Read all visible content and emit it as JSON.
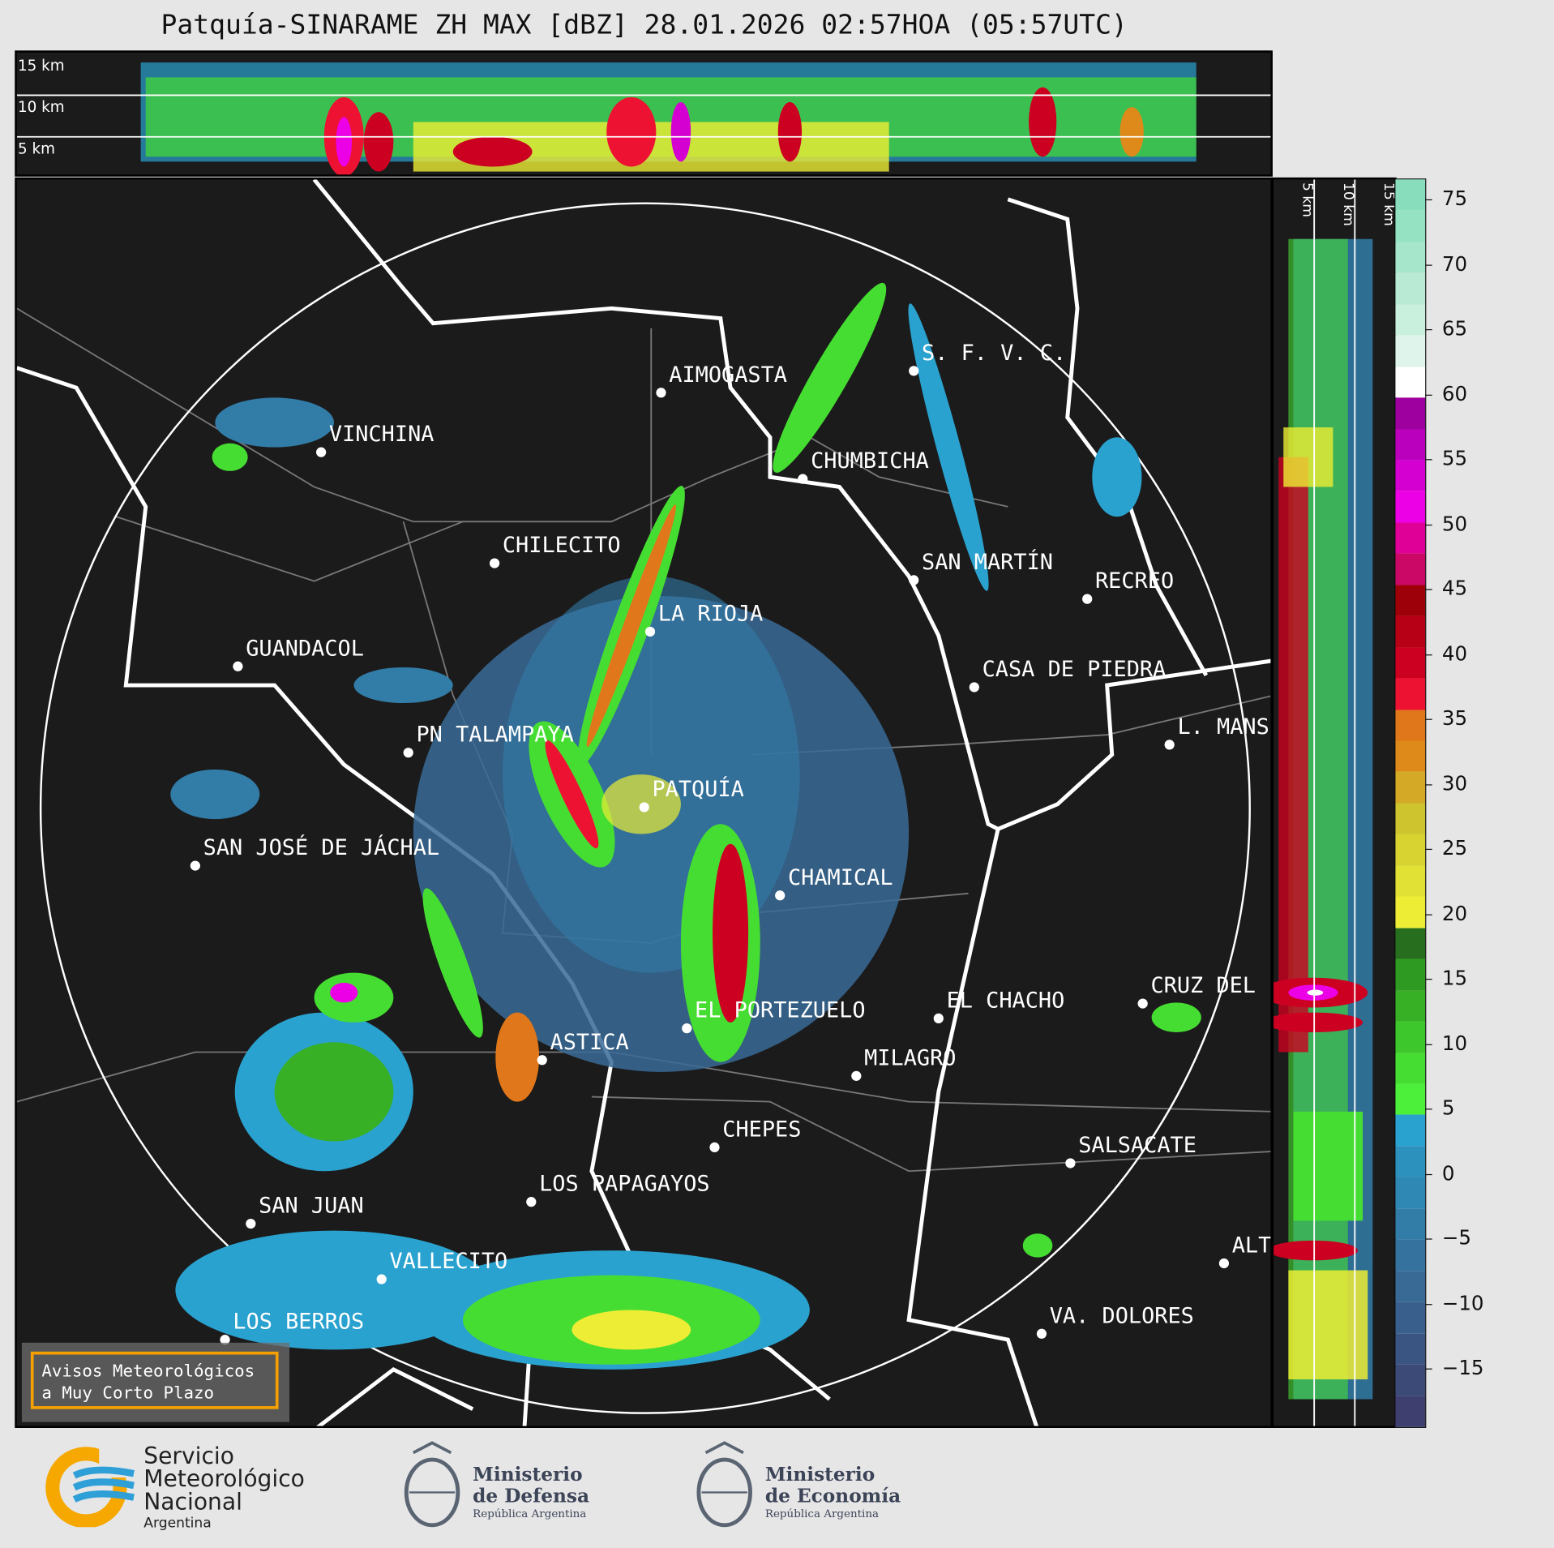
{
  "title": "Patquía-SINARAME ZH MAX [dBZ] 28.01.2026 02:57HOA (05:57UTC)",
  "top_panel": {
    "height_labels": [
      "15 km",
      "10 km",
      "5 km"
    ]
  },
  "side_panel": {
    "height_labels": [
      "5 km",
      "10 km",
      "15 km"
    ]
  },
  "colorbar": {
    "ticks": [
      "75",
      "70",
      "65",
      "60",
      "55",
      "50",
      "45",
      "40",
      "35",
      "30",
      "25",
      "20",
      "15",
      "10",
      "5",
      "0",
      "−5",
      "−10",
      "−15"
    ],
    "colors_bottom_to_top": [
      "#3e3f6e",
      "#3c4a78",
      "#3b5583",
      "#39608c",
      "#386a95",
      "#35739e",
      "#327ca8",
      "#2f87b3",
      "#2c91bd",
      "#2aa2cf",
      "#4cf03a",
      "#46dd32",
      "#3ec72c",
      "#37b026",
      "#2f9a22",
      "#276e1e",
      "#eded35",
      "#e1e035",
      "#d8d331",
      "#cec42d",
      "#d4a925",
      "#de8a1a",
      "#e0771a",
      "#ee1232",
      "#cc0020",
      "#b70015",
      "#9e0009",
      "#cc0866",
      "#de0097",
      "#ec00e5",
      "#d400d2",
      "#bb00bd",
      "#9d009e",
      "#ffffff",
      "#dff4ea",
      "#c9efdd",
      "#b8ead4",
      "#a6e6cb",
      "#95e2c3",
      "#88ddbc"
    ]
  },
  "cities": [
    "AIMOGASTA",
    "S. F. V. C.",
    "VINCHINA",
    "CHUMBICHA",
    "CHILECITO",
    "SAN MARTÍN",
    "RECREO",
    "LA RIOJA",
    "GUANDACOL",
    "CASA DE PIEDRA",
    "PN TALAMPAYA",
    "L. MANS",
    "PATQUÍA",
    "SAN JOSÉ DE JÁCHAL",
    "CHAMICAL",
    "CRUZ DEL",
    "EL CHACHO",
    "EL PORTEZUELO",
    "ASTICA",
    "MILAGRO",
    "CHEPES",
    "SALSACATE",
    "LOS PAPAGAYOS",
    "SAN JUAN",
    "ALT",
    "VALLECITO",
    "VA. DOLORES",
    "LOS BERROS"
  ],
  "warning_box": {
    "line1": "Avisos Meteorológicos",
    "line2": "a Muy Corto Plazo"
  },
  "footer": {
    "smn": {
      "line1": "Servicio",
      "line2": "Meteorológico",
      "line3": "Nacional",
      "line4": "Argentina"
    },
    "defensa": {
      "line1": "Ministerio",
      "line2": "de Defensa",
      "line3": "República Argentina"
    },
    "economia": {
      "line1": "Ministerio",
      "line2": "de Economía",
      "line3": "República Argentina"
    }
  }
}
